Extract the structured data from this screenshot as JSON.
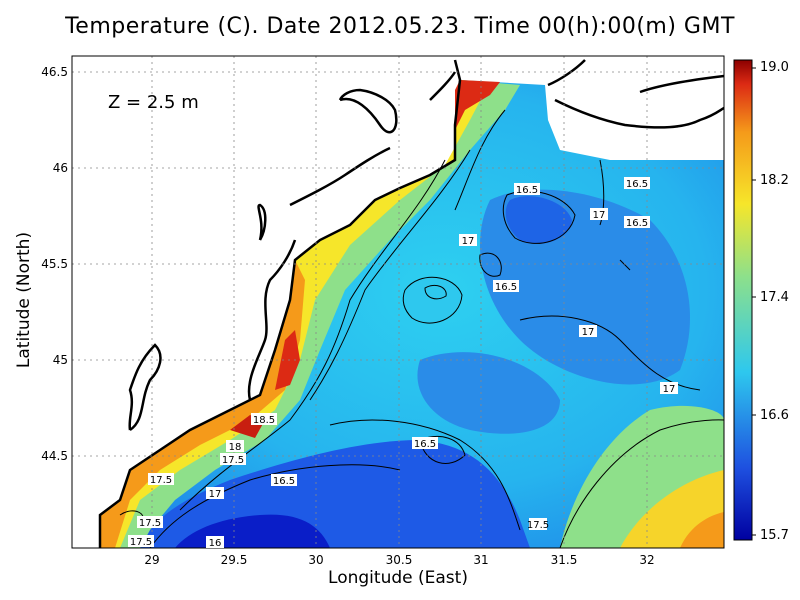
{
  "title": "Temperature (C). Date 2012.05.23. Time 00(h):00(m) GMT",
  "depth_label": "Z = 2.5 m",
  "xlabel": "Longitude (East)",
  "ylabel": "Latitude (North)",
  "x_ticks": [
    "29",
    "29.5",
    "30",
    "30.5",
    "31",
    "31.5",
    "32"
  ],
  "y_ticks": [
    "46.5",
    "46",
    "45.5",
    "45",
    "44.5"
  ],
  "colorbar_ticks": [
    "19.0",
    "18.2",
    "17.4",
    "16.6",
    "15.7"
  ],
  "contour_labels": [
    "16.5",
    "16.5",
    "16.5",
    "17",
    "16.5",
    "17",
    "17",
    "18.5",
    "18",
    "17.5",
    "16.5",
    "17.5",
    "17",
    "16.5",
    "17.5",
    "17.5",
    "16",
    "17",
    "17.5"
  ],
  "colors": {
    "c_min": "#0000a0",
    "c_blue": "#1e64e6",
    "c_cyan": "#2ec8ee",
    "c_green": "#8ee08a",
    "c_yellow": "#f6e62a",
    "c_orange": "#f59a1a",
    "c_red": "#dc2a14",
    "c_max": "#8c0000",
    "land": "#ffffff",
    "coast": "#000000"
  }
}
